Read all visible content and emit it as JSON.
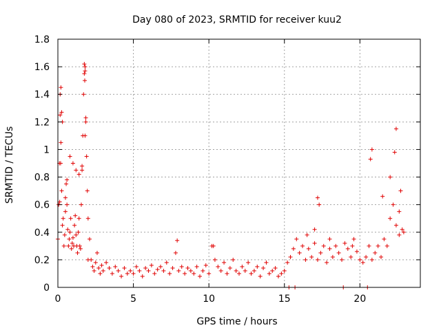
{
  "chart_data": {
    "type": "scatter",
    "title": "Day 080 of 2023, SRMTID for receiver kuu2",
    "xlabel": "GPS time / hours",
    "ylabel": "SRMTID / TECUs",
    "xlim": [
      0,
      24
    ],
    "ylim": [
      0,
      1.8
    ],
    "xticks": [
      0,
      5,
      10,
      15,
      20
    ],
    "xtick_labels": [
      "0",
      "5",
      "10",
      "15",
      "20"
    ],
    "yticks": [
      0,
      0.2,
      0.4,
      0.6,
      0.8,
      1,
      1.2,
      1.4,
      1.6,
      1.8
    ],
    "ytick_labels": [
      "0",
      "0.2",
      "0.4",
      "0.6",
      "0.8",
      "1",
      "1.2",
      "1.4",
      "1.6",
      "1.8"
    ],
    "grid": true,
    "marker": "+",
    "marker_color": "#e00000",
    "series": [
      {
        "name": "SRMTID",
        "x": [
          0.0,
          0.05,
          0.1,
          0.15,
          0.2,
          0.25,
          0.3,
          0.35,
          0.4,
          0.45,
          0.5,
          0.55,
          0.6,
          0.65,
          0.7,
          0.75,
          0.8,
          0.85,
          0.9,
          0.95,
          1.0,
          1.05,
          1.1,
          1.15,
          1.2,
          1.25,
          1.3,
          1.35,
          1.4,
          1.45,
          1.5,
          1.55,
          1.6,
          1.65,
          1.7,
          1.75,
          1.8,
          1.85,
          1.9,
          1.95,
          2.0,
          2.1,
          2.2,
          2.3,
          2.4,
          2.5,
          2.6,
          2.7,
          2.8,
          2.9,
          3.0,
          3.2,
          3.4,
          3.6,
          3.8,
          4.0,
          4.2,
          4.4,
          4.6,
          4.8,
          5.0,
          5.2,
          5.4,
          5.6,
          5.8,
          6.0,
          6.2,
          6.4,
          6.6,
          6.8,
          7.0,
          7.2,
          7.4,
          7.6,
          7.8,
          8.0,
          8.2,
          8.4,
          8.6,
          8.8,
          9.0,
          9.2,
          9.4,
          9.6,
          9.8,
          10.0,
          10.2,
          10.4,
          10.6,
          10.8,
          11.0,
          11.2,
          11.4,
          11.6,
          11.8,
          12.0,
          12.2,
          12.4,
          12.6,
          12.8,
          13.0,
          13.2,
          13.4,
          13.6,
          13.8,
          14.0,
          14.2,
          14.4,
          14.6,
          14.8,
          15.0,
          15.2,
          15.4,
          15.6,
          15.8,
          16.0,
          16.2,
          16.4,
          16.6,
          16.8,
          17.0,
          17.2,
          17.4,
          17.6,
          17.8,
          18.0,
          18.2,
          18.4,
          18.6,
          18.8,
          19.0,
          19.2,
          19.4,
          19.6,
          19.8,
          20.0,
          20.2,
          20.4,
          20.6,
          20.8,
          21.0,
          21.2,
          21.4,
          21.6,
          21.8,
          22.0,
          22.2,
          22.4,
          22.6,
          22.8,
          0.15,
          0.2,
          0.25,
          0.3,
          1.75,
          1.8,
          1.85,
          1.8,
          1.78,
          0.12,
          0.18,
          22.4,
          22.3,
          20.8,
          20.7,
          17.2,
          17.3,
          15.3,
          15.7,
          18.9,
          20.5,
          0.5,
          0.6,
          0.8,
          1.0,
          1.2,
          1.4,
          1.6,
          2.0,
          21.5,
          22.0,
          22.6,
          22.7,
          22.9,
          16.5,
          17.0,
          18.0,
          19.5,
          7.9,
          10.3
        ],
        "y": [
          0.35,
          0.6,
          0.9,
          1.25,
          1.05,
          0.7,
          0.45,
          0.5,
          0.3,
          0.38,
          0.55,
          0.75,
          0.6,
          0.42,
          0.3,
          0.35,
          0.4,
          0.5,
          0.28,
          0.32,
          0.36,
          0.3,
          0.45,
          0.52,
          0.38,
          0.3,
          0.25,
          0.4,
          0.5,
          0.3,
          0.28,
          0.6,
          0.85,
          1.1,
          1.4,
          1.55,
          1.6,
          1.2,
          0.95,
          0.7,
          0.5,
          0.35,
          0.2,
          0.15,
          0.12,
          0.18,
          0.25,
          0.14,
          0.1,
          0.16,
          0.12,
          0.18,
          0.14,
          0.1,
          0.15,
          0.12,
          0.08,
          0.14,
          0.1,
          0.12,
          0.1,
          0.15,
          0.12,
          0.08,
          0.14,
          0.12,
          0.16,
          0.1,
          0.13,
          0.15,
          0.12,
          0.18,
          0.1,
          0.14,
          0.25,
          0.12,
          0.15,
          0.1,
          0.14,
          0.12,
          0.1,
          0.15,
          0.08,
          0.12,
          0.16,
          0.1,
          0.3,
          0.2,
          0.15,
          0.12,
          0.18,
          0.1,
          0.14,
          0.2,
          0.12,
          0.1,
          0.15,
          0.12,
          0.18,
          0.1,
          0.12,
          0.15,
          0.08,
          0.14,
          0.18,
          0.1,
          0.12,
          0.14,
          0.08,
          0.1,
          0.12,
          0.18,
          0.22,
          0.28,
          0.35,
          0.25,
          0.3,
          0.2,
          0.28,
          0.22,
          0.32,
          0.2,
          0.25,
          0.3,
          0.18,
          0.28,
          0.22,
          0.3,
          0.25,
          0.2,
          0.32,
          0.28,
          0.22,
          0.35,
          0.26,
          0.2,
          0.18,
          0.22,
          0.3,
          0.2,
          0.25,
          0.3,
          0.22,
          0.35,
          0.3,
          0.5,
          0.6,
          0.45,
          0.38,
          0.42,
          1.4,
          1.45,
          1.27,
          1.2,
          1.62,
          1.57,
          1.23,
          1.1,
          1.5,
          0.62,
          0.9,
          1.15,
          0.98,
          1.0,
          0.93,
          0.65,
          0.6,
          0.0,
          0.0,
          0.0,
          0.0,
          0.65,
          0.78,
          0.95,
          0.9,
          0.85,
          0.82,
          0.88,
          0.2,
          0.66,
          0.8,
          0.55,
          0.7,
          0.4,
          0.38,
          0.42,
          0.35,
          0.3,
          0.34,
          0.3
        ]
      }
    ]
  }
}
